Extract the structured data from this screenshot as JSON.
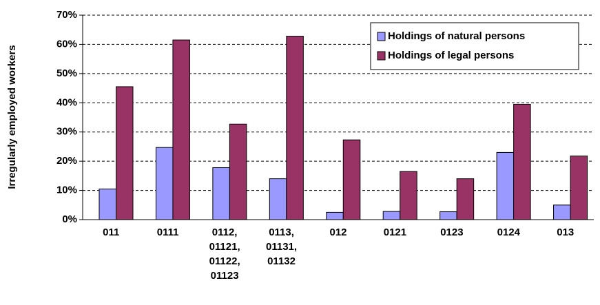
{
  "chart_data": {
    "type": "bar",
    "y_label": "Irregularly employed workers",
    "categories": [
      "011",
      "0111",
      "0112, 01121, 01122, 01123",
      "0113, 01131, 01132",
      "012",
      "0121",
      "0123",
      "0124",
      "013"
    ],
    "series": [
      {
        "name": "Holdings of natural persons",
        "color": "#9999ff",
        "values": [
          10.5,
          24.7,
          17.8,
          14,
          2.5,
          2.8,
          2.7,
          23,
          5
        ]
      },
      {
        "name": "Holdings of legal persons",
        "color": "#993366",
        "values": [
          45.5,
          61.5,
          32.7,
          62.8,
          27.3,
          16.5,
          14,
          39.5,
          21.8
        ]
      }
    ],
    "ylim": [
      0,
      70
    ],
    "yticks": [
      {
        "value": 0,
        "label": "0%"
      },
      {
        "value": 10,
        "label": "10%"
      },
      {
        "value": 20,
        "label": "20%"
      },
      {
        "value": 30,
        "label": "30%"
      },
      {
        "value": 40,
        "label": "40%"
      },
      {
        "value": 50,
        "label": "50%"
      },
      {
        "value": 60,
        "label": "60%"
      },
      {
        "value": 70,
        "label": "70%"
      }
    ],
    "grid": true,
    "legend": "top-right"
  }
}
